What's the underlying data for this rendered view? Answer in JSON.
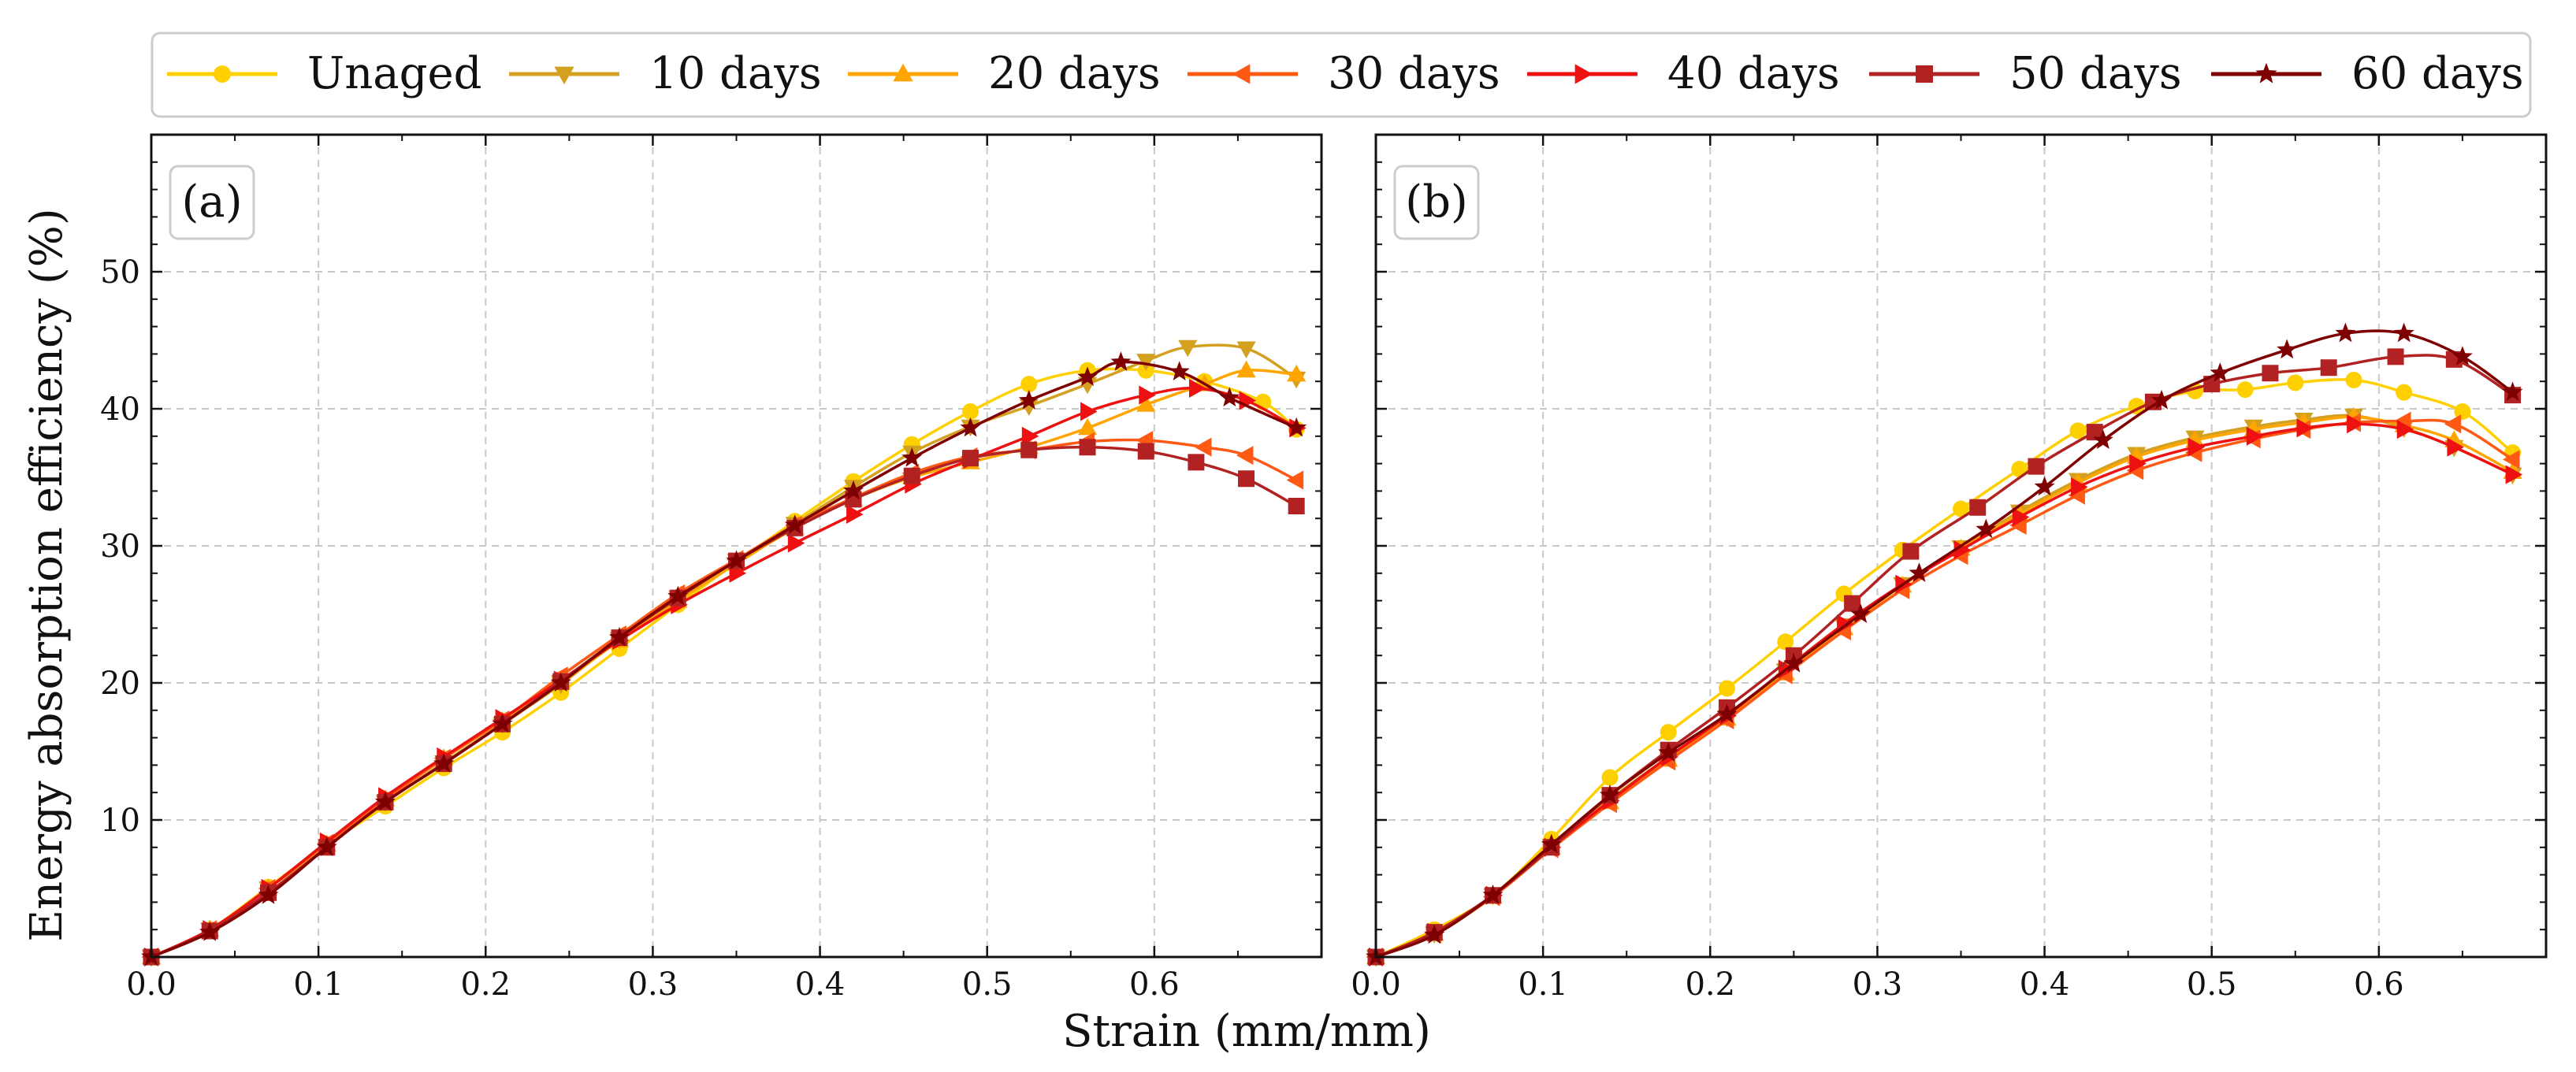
{
  "chart_data": {
    "type": "line",
    "title": "",
    "xlabel": "Strain (mm/mm)",
    "ylabel": "Energy absorption efficiency (%)",
    "xlim": [
      0.0,
      0.7
    ],
    "ylim": [
      0,
      60
    ],
    "xticks": [
      "0.0",
      "0.1",
      "0.2",
      "0.3",
      "0.4",
      "0.5",
      "0.6"
    ],
    "yticks": [
      "10",
      "20",
      "30",
      "40",
      "50"
    ],
    "grid": true,
    "legend_location": "top, outside plot area",
    "legend": [
      {
        "label": "Unaged",
        "color": "#FFD000",
        "marker": "circle"
      },
      {
        "label": "10 days",
        "color": "#D4A020",
        "marker": "triangle-down"
      },
      {
        "label": "20 days",
        "color": "#FFA500",
        "marker": "triangle-up"
      },
      {
        "label": "30 days",
        "color": "#FF5A14",
        "marker": "triangle-left"
      },
      {
        "label": "40 days",
        "color": "#EE1111",
        "marker": "triangle-right"
      },
      {
        "label": "50 days",
        "color": "#B22222",
        "marker": "square"
      },
      {
        "label": "60 days",
        "color": "#7F0000",
        "marker": "star"
      }
    ],
    "panels": [
      {
        "label": "(a)",
        "series": [
          {
            "name": "Unaged",
            "x": [
              0.0,
              0.035,
              0.07,
              0.105,
              0.14,
              0.175,
              0.21,
              0.245,
              0.28,
              0.315,
              0.35,
              0.385,
              0.42,
              0.455,
              0.49,
              0.525,
              0.56,
              0.595,
              0.63,
              0.665,
              0.685
            ],
            "y": [
              0,
              2.0,
              5.1,
              8.2,
              11.0,
              13.8,
              16.4,
              19.3,
              22.5,
              25.7,
              28.8,
              31.8,
              34.7,
              37.4,
              39.8,
              41.8,
              42.8,
              42.8,
              42.0,
              40.5,
              38.5
            ]
          },
          {
            "name": "10 days",
            "x": [
              0.0,
              0.035,
              0.07,
              0.105,
              0.14,
              0.175,
              0.21,
              0.245,
              0.28,
              0.315,
              0.35,
              0.385,
              0.42,
              0.455,
              0.49,
              0.525,
              0.56,
              0.595,
              0.62,
              0.655,
              0.685
            ],
            "y": [
              0,
              2.0,
              5.0,
              8.1,
              11.3,
              14.2,
              17.0,
              19.9,
              23.2,
              26.2,
              28.9,
              31.6,
              34.3,
              36.8,
              38.7,
              40.2,
              41.8,
              43.5,
              44.5,
              44.4,
              42.2
            ]
          },
          {
            "name": "20 days",
            "x": [
              0.0,
              0.035,
              0.07,
              0.105,
              0.14,
              0.175,
              0.21,
              0.245,
              0.28,
              0.315,
              0.35,
              0.385,
              0.42,
              0.455,
              0.49,
              0.525,
              0.56,
              0.595,
              0.63,
              0.655,
              0.685
            ],
            "y": [
              0,
              2.0,
              5.0,
              8.2,
              11.5,
              14.5,
              17.2,
              20.0,
              23.1,
              26.0,
              28.7,
              31.3,
              33.4,
              35.0,
              36.1,
              37.2,
              38.6,
              40.3,
              41.8,
              42.8,
              42.5
            ]
          },
          {
            "name": "30 days",
            "x": [
              0.0,
              0.035,
              0.07,
              0.105,
              0.14,
              0.175,
              0.21,
              0.245,
              0.28,
              0.315,
              0.35,
              0.385,
              0.42,
              0.455,
              0.49,
              0.525,
              0.56,
              0.595,
              0.63,
              0.655,
              0.685
            ],
            "y": [
              0,
              2.0,
              5.0,
              8.3,
              11.5,
              14.5,
              17.3,
              20.5,
              23.5,
              26.5,
              29.0,
              31.5,
              33.5,
              35.3,
              36.5,
              37.0,
              37.6,
              37.7,
              37.2,
              36.6,
              34.8
            ]
          },
          {
            "name": "40 days",
            "x": [
              0.0,
              0.035,
              0.07,
              0.105,
              0.14,
              0.175,
              0.21,
              0.245,
              0.28,
              0.315,
              0.35,
              0.385,
              0.42,
              0.455,
              0.49,
              0.525,
              0.56,
              0.595,
              0.625,
              0.655,
              0.685
            ],
            "y": [
              0,
              2.0,
              5.0,
              8.4,
              11.7,
              14.6,
              17.4,
              20.2,
              23.1,
              25.7,
              28.0,
              30.2,
              32.3,
              34.5,
              36.3,
              38.0,
              39.8,
              41.0,
              41.5,
              40.6,
              38.6
            ]
          },
          {
            "name": "50 days",
            "x": [
              0.0,
              0.035,
              0.07,
              0.105,
              0.14,
              0.175,
              0.21,
              0.245,
              0.28,
              0.315,
              0.35,
              0.385,
              0.42,
              0.455,
              0.49,
              0.525,
              0.56,
              0.595,
              0.625,
              0.655,
              0.685
            ],
            "y": [
              0,
              1.9,
              4.7,
              8.0,
              11.3,
              14.1,
              17.0,
              20.1,
              23.3,
              26.2,
              28.9,
              31.3,
              33.4,
              35.1,
              36.4,
              37.0,
              37.2,
              36.9,
              36.1,
              34.9,
              32.9
            ]
          },
          {
            "name": "60 days",
            "x": [
              0.0,
              0.035,
              0.07,
              0.105,
              0.14,
              0.175,
              0.21,
              0.245,
              0.28,
              0.315,
              0.35,
              0.385,
              0.42,
              0.455,
              0.49,
              0.525,
              0.56,
              0.58,
              0.615,
              0.645,
              0.685
            ],
            "y": [
              0,
              1.8,
              4.5,
              8.0,
              11.3,
              14.1,
              17.0,
              20.0,
              23.3,
              26.3,
              28.9,
              31.5,
              34.0,
              36.4,
              38.6,
              40.6,
              42.3,
              43.4,
              42.7,
              40.8,
              38.6
            ]
          }
        ]
      },
      {
        "label": "(b)",
        "series": [
          {
            "name": "Unaged",
            "x": [
              0.0,
              0.035,
              0.07,
              0.105,
              0.14,
              0.175,
              0.21,
              0.245,
              0.28,
              0.315,
              0.35,
              0.385,
              0.42,
              0.455,
              0.49,
              0.52,
              0.55,
              0.585,
              0.615,
              0.65,
              0.68
            ],
            "y": [
              0,
              2.0,
              4.5,
              8.6,
              13.1,
              16.4,
              19.6,
              23.0,
              26.5,
              29.7,
              32.7,
              35.6,
              38.4,
              40.2,
              41.3,
              41.4,
              41.9,
              42.1,
              41.2,
              39.8,
              36.8
            ]
          },
          {
            "name": "10 days",
            "x": [
              0.0,
              0.035,
              0.07,
              0.105,
              0.14,
              0.175,
              0.21,
              0.245,
              0.28,
              0.315,
              0.35,
              0.385,
              0.42,
              0.455,
              0.49,
              0.525,
              0.555,
              0.585,
              0.615,
              0.645,
              0.68
            ],
            "y": [
              0,
              1.7,
              4.5,
              8.1,
              11.5,
              14.6,
              17.5,
              20.9,
              24.2,
              27.2,
              29.9,
              32.5,
              34.8,
              36.7,
              37.9,
              38.7,
              39.2,
              39.5,
              38.6,
              37.2,
              35.2
            ]
          },
          {
            "name": "20 days",
            "x": [
              0.0,
              0.035,
              0.07,
              0.105,
              0.14,
              0.175,
              0.21,
              0.245,
              0.28,
              0.315,
              0.35,
              0.385,
              0.42,
              0.455,
              0.49,
              0.525,
              0.555,
              0.585,
              0.615,
              0.645,
              0.68
            ],
            "y": [
              0,
              1.7,
              4.4,
              8.0,
              11.3,
              14.4,
              17.4,
              20.7,
              24.0,
              27.1,
              29.8,
              32.3,
              34.6,
              36.5,
              37.7,
              38.5,
              39.0,
              39.4,
              38.8,
              37.7,
              35.4
            ]
          },
          {
            "name": "30 days",
            "x": [
              0.0,
              0.035,
              0.07,
              0.105,
              0.14,
              0.175,
              0.21,
              0.245,
              0.28,
              0.315,
              0.35,
              0.385,
              0.42,
              0.455,
              0.49,
              0.525,
              0.555,
              0.585,
              0.615,
              0.645,
              0.68
            ],
            "y": [
              0,
              1.7,
              4.4,
              7.9,
              11.2,
              14.3,
              17.3,
              20.6,
              23.8,
              26.8,
              29.3,
              31.5,
              33.7,
              35.5,
              36.8,
              37.8,
              38.5,
              39.0,
              39.1,
              38.9,
              36.3
            ]
          },
          {
            "name": "40 days",
            "x": [
              0.0,
              0.035,
              0.07,
              0.105,
              0.14,
              0.175,
              0.21,
              0.245,
              0.28,
              0.315,
              0.35,
              0.385,
              0.42,
              0.455,
              0.49,
              0.525,
              0.555,
              0.585,
              0.615,
              0.645,
              0.68
            ],
            "y": [
              0,
              1.8,
              4.5,
              8.0,
              11.4,
              14.6,
              17.6,
              21.0,
              24.3,
              27.2,
              29.7,
              32.1,
              34.3,
              36.0,
              37.2,
              38.0,
              38.6,
              38.9,
              38.5,
              37.2,
              35.2
            ]
          },
          {
            "name": "50 days",
            "x": [
              0.0,
              0.035,
              0.07,
              0.105,
              0.14,
              0.175,
              0.21,
              0.25,
              0.285,
              0.32,
              0.36,
              0.395,
              0.43,
              0.465,
              0.5,
              0.535,
              0.57,
              0.61,
              0.645,
              0.68
            ],
            "y": [
              0,
              1.8,
              4.5,
              8.0,
              11.8,
              15.1,
              18.2,
              22.0,
              25.8,
              29.6,
              32.8,
              35.8,
              38.3,
              40.5,
              41.8,
              42.6,
              43.0,
              43.8,
              43.6,
              41.0
            ]
          },
          {
            "name": "60 days",
            "x": [
              0.0,
              0.035,
              0.07,
              0.105,
              0.14,
              0.175,
              0.21,
              0.25,
              0.29,
              0.325,
              0.365,
              0.4,
              0.435,
              0.47,
              0.505,
              0.545,
              0.58,
              0.615,
              0.65,
              0.68
            ],
            "y": [
              0,
              1.6,
              4.5,
              8.2,
              11.8,
              14.9,
              17.7,
              21.4,
              25.0,
              28.0,
              31.2,
              34.3,
              37.7,
              40.6,
              42.6,
              44.3,
              45.5,
              45.5,
              43.8,
              41.2
            ]
          }
        ]
      }
    ]
  }
}
